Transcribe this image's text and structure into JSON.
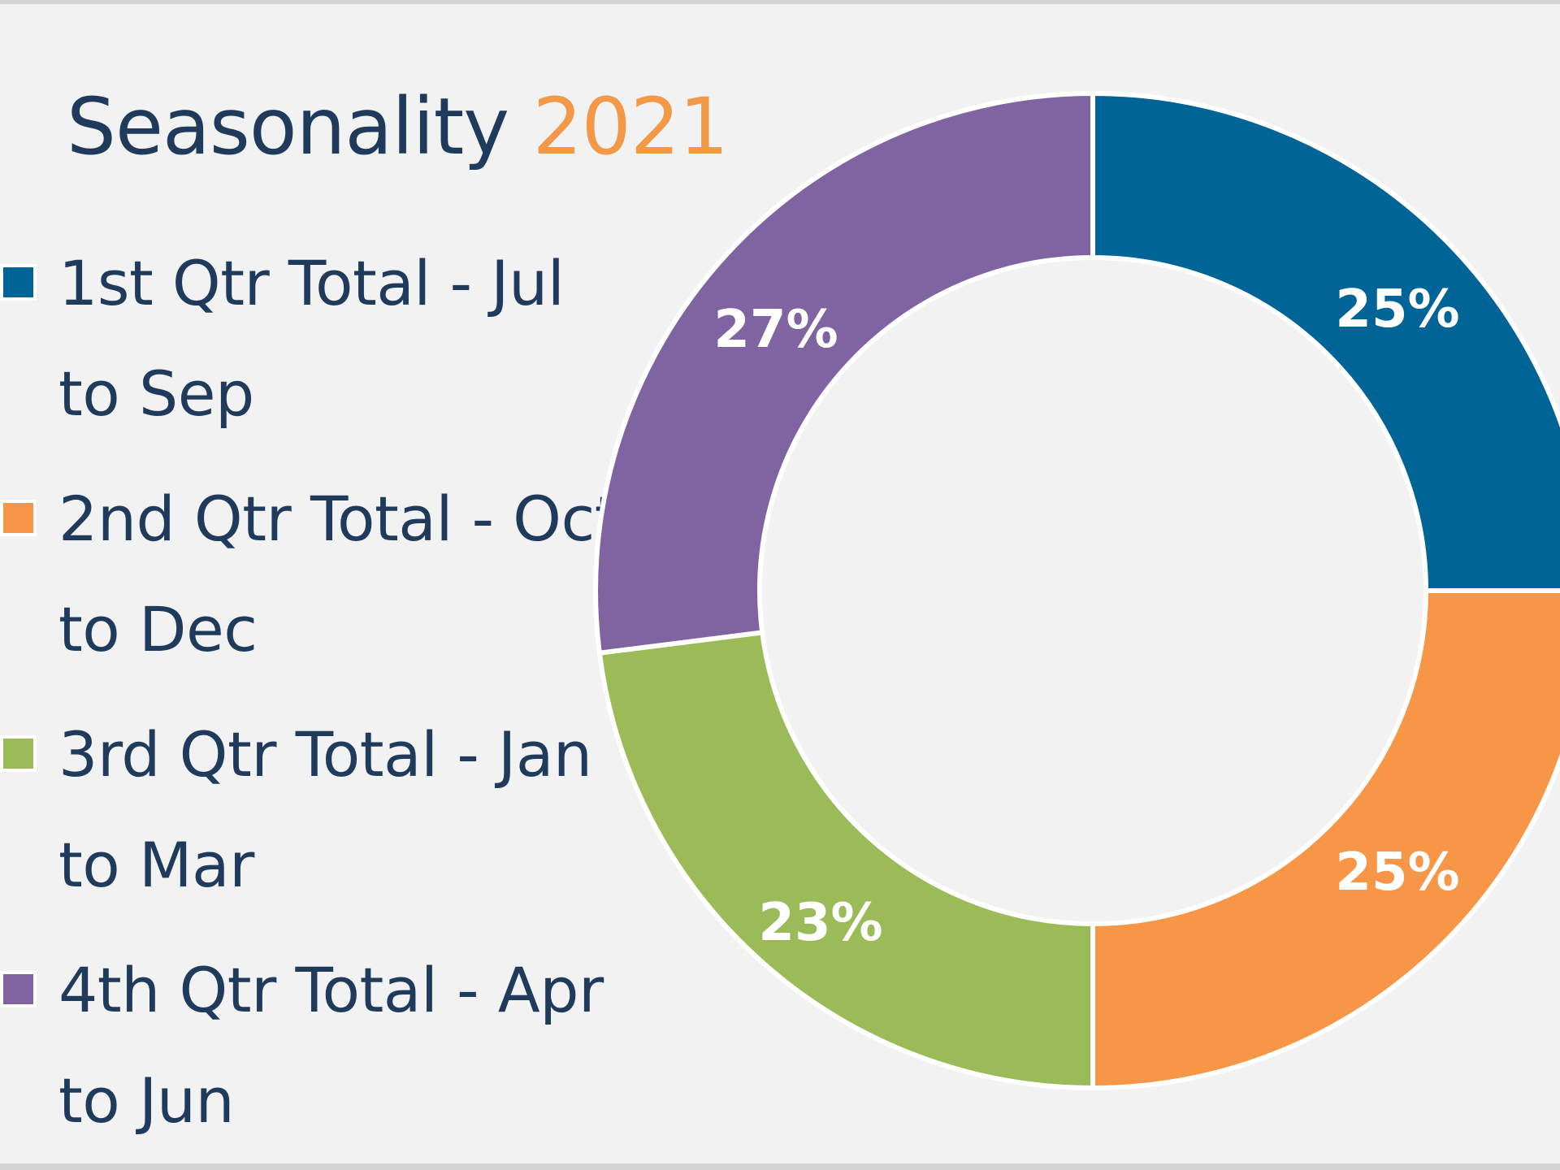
{
  "title": {
    "main": "Seasonality",
    "year": "2021"
  },
  "colors": {
    "background": "#f2f2f2",
    "title_text": "#1f3a5a",
    "title_accent": "#f39847",
    "slice_label": "#ffffff"
  },
  "chart_data": {
    "type": "pie",
    "style": "donut",
    "legend_position": "left",
    "series": [
      {
        "name": "1st Qtr Total - Jul to Sep",
        "label_lines": [
          "1st Qtr Total - Jul",
          "to Sep"
        ],
        "value": 25,
        "label": "25%",
        "color": "#006496"
      },
      {
        "name": "2nd Qtr Total - Oct to Dec",
        "label_lines": [
          "2nd Qtr Total - Oct",
          "to Dec"
        ],
        "value": 25,
        "label": "25%",
        "color": "#f79646"
      },
      {
        "name": "3rd Qtr Total - Jan to Mar",
        "label_lines": [
          "3rd Qtr Total - Jan",
          "to Mar"
        ],
        "value": 23,
        "label": "23%",
        "color": "#9bbb59"
      },
      {
        "name": "4th Qtr Total - Apr to Jun",
        "label_lines": [
          "4th Qtr Total - Apr",
          "to Jun"
        ],
        "value": 27,
        "label": "27%",
        "color": "#8064a2"
      }
    ]
  }
}
